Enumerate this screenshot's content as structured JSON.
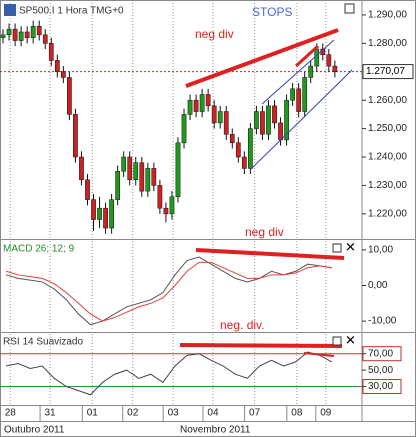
{
  "chart_data": [
    {
      "type": "candlestick",
      "title": "SP500.I 1 Hora TMG+0",
      "annotations": [
        "STOPS",
        "neg div"
      ],
      "current_price": {
        "value": 1270.07,
        "label": "1.270,07"
      },
      "xlim": [
        0,
        60
      ],
      "ylim": [
        1211.5,
        1294.2
      ],
      "yticks": [
        {
          "value": 1290,
          "label": "1.290,00"
        },
        {
          "value": 1280,
          "label": "1.280,00"
        },
        {
          "value": 1260,
          "label": "1.260,00"
        },
        {
          "value": 1250,
          "label": "1.250,00"
        },
        {
          "value": 1240,
          "label": "1.240,00"
        },
        {
          "value": 1230,
          "label": "1.230,00"
        },
        {
          "value": 1220,
          "label": "1.220,00"
        }
      ],
      "up_color": "#1f9a1f",
      "down_color": "#cc2222",
      "candles": [
        [
          1282,
          1285,
          1280,
          1283
        ],
        [
          1283,
          1287,
          1281,
          1285
        ],
        [
          1285,
          1287,
          1279,
          1281
        ],
        [
          1281,
          1286,
          1279,
          1284
        ],
        [
          1284,
          1286,
          1280,
          1282
        ],
        [
          1282,
          1288,
          1280,
          1286
        ],
        [
          1286,
          1288,
          1281,
          1283
        ],
        [
          1283,
          1285,
          1278,
          1280
        ],
        [
          1280,
          1282,
          1272,
          1274
        ],
        [
          1274,
          1276,
          1268,
          1270
        ],
        [
          1270,
          1272,
          1266,
          1268
        ],
        [
          1268,
          1270,
          1253,
          1255
        ],
        [
          1255,
          1257,
          1238,
          1240
        ],
        [
          1240,
          1242,
          1230,
          1232
        ],
        [
          1232,
          1234,
          1223,
          1225
        ],
        [
          1225,
          1227,
          1214,
          1218
        ],
        [
          1218,
          1226,
          1215,
          1222
        ],
        [
          1222,
          1224,
          1213,
          1215
        ],
        [
          1215,
          1227,
          1213,
          1225
        ],
        [
          1225,
          1237,
          1223,
          1235
        ],
        [
          1235,
          1242,
          1233,
          1240
        ],
        [
          1240,
          1242,
          1230,
          1232
        ],
        [
          1232,
          1240,
          1230,
          1238
        ],
        [
          1238,
          1240,
          1226,
          1228
        ],
        [
          1228,
          1238,
          1226,
          1236
        ],
        [
          1236,
          1238,
          1228,
          1230
        ],
        [
          1230,
          1232,
          1220,
          1222
        ],
        [
          1222,
          1224,
          1217,
          1220
        ],
        [
          1220,
          1228,
          1218,
          1226
        ],
        [
          1226,
          1247,
          1224,
          1245
        ],
        [
          1245,
          1257,
          1243,
          1255
        ],
        [
          1255,
          1262,
          1253,
          1260
        ],
        [
          1260,
          1262,
          1254,
          1256
        ],
        [
          1256,
          1264,
          1254,
          1262
        ],
        [
          1262,
          1264,
          1256,
          1258
        ],
        [
          1258,
          1260,
          1250,
          1252
        ],
        [
          1252,
          1258,
          1250,
          1256
        ],
        [
          1256,
          1258,
          1246,
          1248
        ],
        [
          1248,
          1250,
          1243,
          1245
        ],
        [
          1245,
          1247,
          1238,
          1240
        ],
        [
          1240,
          1242,
          1234,
          1236
        ],
        [
          1236,
          1252,
          1234,
          1250
        ],
        [
          1250,
          1258,
          1248,
          1256
        ],
        [
          1256,
          1258,
          1246,
          1248
        ],
        [
          1248,
          1260,
          1246,
          1258
        ],
        [
          1258,
          1260,
          1250,
          1252
        ],
        [
          1252,
          1254,
          1244,
          1246
        ],
        [
          1246,
          1262,
          1244,
          1260
        ],
        [
          1260,
          1266,
          1258,
          1264
        ],
        [
          1264,
          1266,
          1254,
          1256
        ],
        [
          1256,
          1270,
          1254,
          1268
        ],
        [
          1268,
          1274,
          1266,
          1272
        ],
        [
          1272,
          1280,
          1270,
          1278
        ],
        [
          1278,
          1280,
          1274,
          1276
        ],
        [
          1276,
          1278,
          1270,
          1272
        ],
        [
          1272,
          1274,
          1268,
          1270
        ]
      ]
    },
    {
      "type": "line",
      "title": "MACD 26; 12; 9",
      "annotations": [
        "neg div"
      ],
      "ylim": [
        -12.5,
        12.5
      ],
      "yticks": [
        {
          "value": 10,
          "label": "10,00"
        },
        {
          "value": 0,
          "label": "0,00"
        },
        {
          "value": -10,
          "label": "-10,00"
        }
      ],
      "series": [
        {
          "color": "#555555",
          "values": [
            3,
            2,
            1.5,
            1,
            -1,
            -4,
            -8,
            -11,
            -10,
            -8,
            -6,
            -5,
            -4,
            -2,
            3,
            7,
            8,
            6,
            4,
            2,
            1,
            2,
            4,
            3,
            4,
            6,
            5.5,
            5
          ]
        },
        {
          "color": "#e04040",
          "values": [
            4,
            3,
            2.5,
            2,
            0.5,
            -2,
            -5,
            -8,
            -10,
            -9,
            -7.5,
            -6,
            -5,
            -3.5,
            0,
            4,
            6.5,
            6.5,
            5,
            3.5,
            2,
            2,
            3,
            3,
            3.5,
            5,
            5.5,
            5
          ]
        }
      ]
    },
    {
      "type": "line",
      "title": "RSI 14 Suavizado",
      "annotations": [
        "neg. div."
      ],
      "ylim": [
        7.5,
        94
      ],
      "yticks": [
        {
          "value": 70,
          "label": "70,00"
        },
        {
          "value": 50,
          "label": "50,00"
        },
        {
          "value": 30,
          "label": "30,00"
        }
      ],
      "levels": [
        {
          "value": 70,
          "color": "#d03030"
        },
        {
          "value": 30,
          "color": "#2a9a2a"
        }
      ],
      "series": [
        {
          "color": "#444444",
          "values": [
            55,
            58,
            52,
            55,
            40,
            30,
            25,
            20,
            35,
            45,
            50,
            40,
            45,
            35,
            55,
            68,
            70,
            62,
            55,
            45,
            40,
            55,
            62,
            55,
            60,
            72,
            68,
            60
          ]
        }
      ],
      "x_labels": [
        {
          "value": 1.7,
          "label": "28"
        },
        {
          "value": 8.3,
          "label": "31"
        },
        {
          "value": 15.3,
          "label": "01"
        },
        {
          "value": 22,
          "label": "02"
        },
        {
          "value": 28.7,
          "label": "03"
        },
        {
          "value": 35.3,
          "label": "04"
        },
        {
          "value": 42.2,
          "label": "07"
        },
        {
          "value": 49.2,
          "label": "08"
        },
        {
          "value": 54,
          "label": "09"
        }
      ],
      "months": [
        "Outubro 2011",
        "Novembro 2011"
      ]
    }
  ]
}
